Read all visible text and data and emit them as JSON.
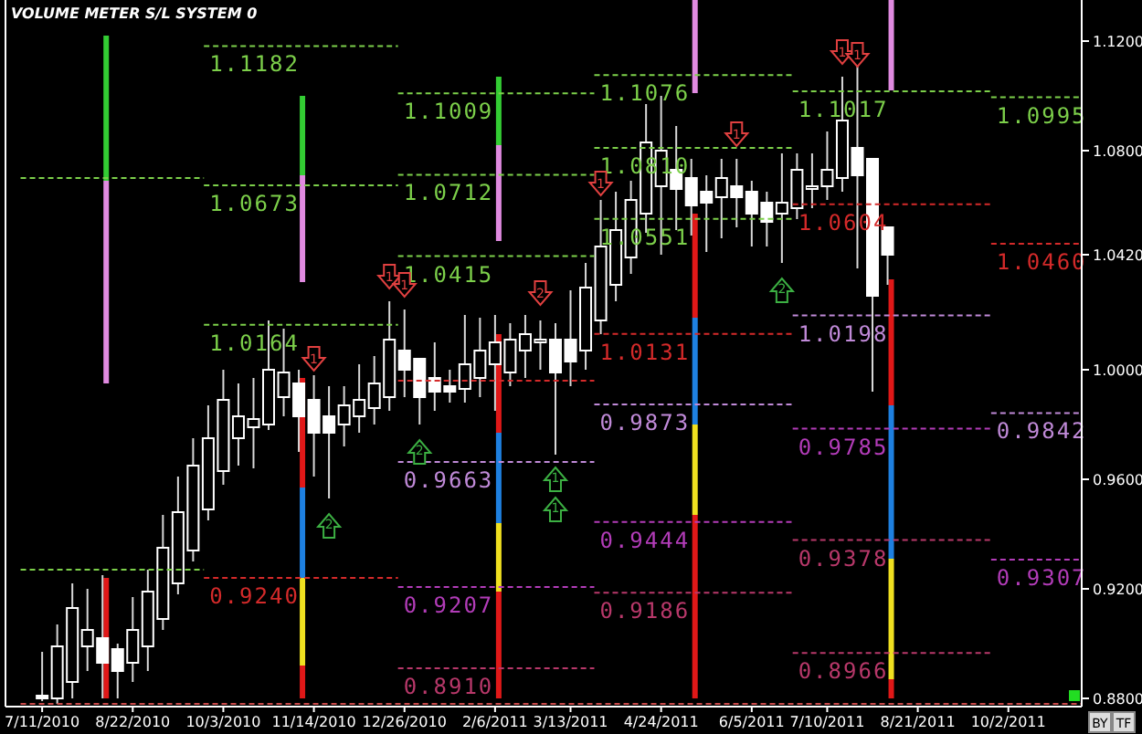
{
  "chart_data": {
    "type": "candlestick",
    "title": "VOLUME METER  S/L SYSTEM 0",
    "x": [
      "2010-07-11",
      "2010-07-18",
      "2010-07-25",
      "2010-08-01",
      "2010-08-08",
      "2010-08-15",
      "2010-08-22",
      "2010-08-29",
      "2010-09-05",
      "2010-09-12",
      "2010-09-19",
      "2010-09-26",
      "2010-10-03",
      "2010-10-10",
      "2010-10-17",
      "2010-10-24",
      "2010-10-31",
      "2010-11-07",
      "2010-11-14",
      "2010-11-21",
      "2010-11-28",
      "2010-12-05",
      "2010-12-12",
      "2010-12-19",
      "2010-12-26",
      "2011-01-02",
      "2011-01-09",
      "2011-01-16",
      "2011-01-23",
      "2011-01-30",
      "2011-02-06",
      "2011-02-13",
      "2011-02-20",
      "2011-02-27",
      "2011-03-06",
      "2011-03-13",
      "2011-03-20",
      "2011-03-27",
      "2011-04-03",
      "2011-04-10",
      "2011-04-17",
      "2011-04-24",
      "2011-05-01",
      "2011-05-08",
      "2011-05-15",
      "2011-05-22",
      "2011-05-29",
      "2011-06-05",
      "2011-06-12",
      "2011-06-19",
      "2011-06-26",
      "2011-07-03",
      "2011-07-10",
      "2011-07-17",
      "2011-07-24",
      "2011-07-31",
      "2011-08-07"
    ],
    "ohlc": [
      [
        0.881,
        0.897,
        0.879,
        0.88
      ],
      [
        0.88,
        0.907,
        0.878,
        0.899
      ],
      [
        0.886,
        0.922,
        0.88,
        0.913
      ],
      [
        0.899,
        0.92,
        0.89,
        0.905
      ],
      [
        0.902,
        0.925,
        0.88,
        0.893
      ],
      [
        0.898,
        0.9,
        0.88,
        0.89
      ],
      [
        0.893,
        0.917,
        0.886,
        0.905
      ],
      [
        0.899,
        0.927,
        0.89,
        0.919
      ],
      [
        0.909,
        0.947,
        0.905,
        0.935
      ],
      [
        0.922,
        0.961,
        0.918,
        0.948
      ],
      [
        0.934,
        0.975,
        0.93,
        0.965
      ],
      [
        0.949,
        0.987,
        0.945,
        0.975
      ],
      [
        0.963,
        1.0,
        0.958,
        0.989
      ],
      [
        0.975,
        0.995,
        0.965,
        0.983
      ],
      [
        0.979,
        0.997,
        0.964,
        0.982
      ],
      [
        0.98,
        1.018,
        0.978,
        1.0
      ],
      [
        0.99,
        1.015,
        0.983,
        0.999
      ],
      [
        0.995,
        1.0,
        0.97,
        0.983
      ],
      [
        0.989,
        0.998,
        0.961,
        0.977
      ],
      [
        0.983,
        0.994,
        0.953,
        0.977
      ],
      [
        0.98,
        0.994,
        0.972,
        0.987
      ],
      [
        0.983,
        1.002,
        0.977,
        0.989
      ],
      [
        0.986,
        1.005,
        0.98,
        0.995
      ],
      [
        0.99,
        1.025,
        0.985,
        1.011
      ],
      [
        1.007,
        1.022,
        0.99,
        1.0
      ],
      [
        1.004,
        1.004,
        0.98,
        0.99
      ],
      [
        0.997,
        1.01,
        0.985,
        0.992
      ],
      [
        0.994,
        1.0,
        0.988,
        0.992
      ],
      [
        0.993,
        1.02,
        0.988,
        1.002
      ],
      [
        0.997,
        1.019,
        0.99,
        1.007
      ],
      [
        1.002,
        1.02,
        0.985,
        1.01
      ],
      [
        0.999,
        1.017,
        0.994,
        1.011
      ],
      [
        1.007,
        1.02,
        0.997,
        1.013
      ],
      [
        1.01,
        1.018,
        1.0,
        1.011
      ],
      [
        1.011,
        1.017,
        0.969,
        0.999
      ],
      [
        1.011,
        1.029,
        0.994,
        1.003
      ],
      [
        1.007,
        1.039,
        1.0,
        1.03
      ],
      [
        1.018,
        1.062,
        1.013,
        1.045
      ],
      [
        1.031,
        1.065,
        1.025,
        1.051
      ],
      [
        1.041,
        1.069,
        1.035,
        1.062
      ],
      [
        1.057,
        1.097,
        1.05,
        1.083
      ],
      [
        1.067,
        1.1,
        1.042,
        1.08
      ],
      [
        1.073,
        1.089,
        1.051,
        1.066
      ],
      [
        1.07,
        1.077,
        1.049,
        1.06
      ],
      [
        1.065,
        1.071,
        1.043,
        1.061
      ],
      [
        1.063,
        1.077,
        1.048,
        1.07
      ],
      [
        1.067,
        1.077,
        1.052,
        1.063
      ],
      [
        1.065,
        1.069,
        1.045,
        1.057
      ],
      [
        1.061,
        1.065,
        1.045,
        1.054
      ],
      [
        1.057,
        1.079,
        1.039,
        1.061
      ],
      [
        1.059,
        1.079,
        1.055,
        1.073
      ],
      [
        1.066,
        1.079,
        1.059,
        1.067
      ],
      [
        1.067,
        1.087,
        1.062,
        1.073
      ],
      [
        1.07,
        1.107,
        1.065,
        1.091
      ],
      [
        1.081,
        1.111,
        1.037,
        1.071
      ],
      [
        1.077,
        1.077,
        0.992,
        1.027
      ],
      [
        1.052,
        1.052,
        1.031,
        1.042
      ]
    ],
    "xlim": [
      "2010-06-24",
      "2011-11-05"
    ],
    "ylim": [
      0.877,
      1.135
    ],
    "xticks": [
      {
        "value": "2010-07-11",
        "label": "7/11/2010"
      },
      {
        "value": "2010-08-22",
        "label": "8/22/2010"
      },
      {
        "value": "2010-10-03",
        "label": "10/3/2010"
      },
      {
        "value": "2010-11-14",
        "label": "11/14/2010"
      },
      {
        "value": "2010-12-26",
        "label": "12/26/2010"
      },
      {
        "value": "2011-02-06",
        "label": "2/6/2011"
      },
      {
        "value": "2011-03-13",
        "label": "3/13/2011"
      },
      {
        "value": "2011-04-24",
        "label": "4/24/2011"
      },
      {
        "value": "2011-06-05",
        "label": "6/5/2011"
      },
      {
        "value": "2011-07-10",
        "label": "7/10/2011"
      },
      {
        "value": "2011-08-21",
        "label": "8/21/2011"
      },
      {
        "value": "2011-10-02",
        "label": "10/2/2011"
      }
    ],
    "yticks": [
      {
        "value": 0.88,
        "label": "0.8800"
      },
      {
        "value": 0.92,
        "label": "0.9200"
      },
      {
        "value": 0.96,
        "label": "0.9600"
      },
      {
        "value": 1.0,
        "label": "1.0000"
      },
      {
        "value": 1.042,
        "label": "1.0420"
      },
      {
        "value": 1.08,
        "label": "1.0800"
      },
      {
        "value": 1.12,
        "label": "1.1200"
      }
    ],
    "series": [
      {
        "type": "line",
        "line_style": "dashed",
        "color": "#7ccf4a",
        "x": [
          "2010-07-01",
          "2010-09-24"
        ],
        "values": [
          1.07,
          1.07
        ]
      },
      {
        "type": "line",
        "line_style": "dashed",
        "color": "#7ccf4a",
        "x": [
          "2010-07-01",
          "2010-09-24"
        ],
        "values": [
          0.927,
          0.927
        ]
      },
      {
        "type": "line",
        "line_style": "dashed",
        "color": "#7ccf4a",
        "name": "1.1182",
        "x": [
          "2010-09-24",
          "2010-12-23"
        ],
        "values": [
          1.1182,
          1.1182
        ]
      },
      {
        "type": "line",
        "line_style": "dashed",
        "color": "#7ccf4a",
        "name": "1.0673",
        "x": [
          "2010-09-24",
          "2010-12-23"
        ],
        "values": [
          1.0673,
          1.0673
        ]
      },
      {
        "type": "line",
        "line_style": "dashed",
        "color": "#7ccf4a",
        "name": "1.0164",
        "x": [
          "2010-09-24",
          "2010-12-23"
        ],
        "values": [
          1.0164,
          1.0164
        ]
      },
      {
        "type": "line",
        "line_style": "dashed",
        "color": "#d42a2a",
        "name": "0.9240",
        "x": [
          "2010-09-24",
          "2010-12-23"
        ],
        "values": [
          0.924,
          0.924
        ]
      },
      {
        "type": "line",
        "line_style": "dashed",
        "color": "#7ccf4a",
        "name": "1.1009",
        "x": [
          "2010-12-23",
          "2011-03-24"
        ],
        "values": [
          1.1009,
          1.1009
        ]
      },
      {
        "type": "line",
        "line_style": "dashed",
        "color": "#7ccf4a",
        "name": "1.0712",
        "x": [
          "2010-12-23",
          "2011-03-24"
        ],
        "values": [
          1.0712,
          1.0712
        ]
      },
      {
        "type": "line",
        "line_style": "dashed",
        "color": "#7ccf4a",
        "name": "1.0415",
        "x": [
          "2010-12-23",
          "2011-03-24"
        ],
        "values": [
          1.0415,
          1.0415
        ]
      },
      {
        "type": "line",
        "line_style": "dashed",
        "color": "#d42a2a",
        "x": [
          "2010-12-23",
          "2011-03-24"
        ],
        "values": [
          0.996,
          0.996
        ]
      },
      {
        "type": "line",
        "line_style": "dashed",
        "color": "#c08ad8",
        "name": "0.9663",
        "x": [
          "2010-12-23",
          "2011-03-24"
        ],
        "values": [
          0.9663,
          0.9663
        ]
      },
      {
        "type": "line",
        "line_style": "dashed",
        "color": "#b23cb8",
        "name": "0.9207",
        "x": [
          "2010-12-23",
          "2011-03-24"
        ],
        "values": [
          0.9207,
          0.9207
        ]
      },
      {
        "type": "line",
        "line_style": "dashed",
        "color": "#b8386a",
        "name": "0.8910",
        "x": [
          "2010-12-23",
          "2011-03-24"
        ],
        "values": [
          0.891,
          0.891
        ]
      },
      {
        "type": "line",
        "line_style": "dashed",
        "color": "#7ccf4a",
        "name": "1.1076",
        "x": [
          "2011-03-24",
          "2011-06-24"
        ],
        "values": [
          1.1076,
          1.1076
        ]
      },
      {
        "type": "line",
        "line_style": "dashed",
        "color": "#7ccf4a",
        "name": "1.0810",
        "x": [
          "2011-03-24",
          "2011-06-24"
        ],
        "values": [
          1.081,
          1.081
        ]
      },
      {
        "type": "line",
        "line_style": "dashed",
        "color": "#7ccf4a",
        "name": "1.0551",
        "x": [
          "2011-03-24",
          "2011-06-24"
        ],
        "values": [
          1.0551,
          1.0551
        ]
      },
      {
        "type": "line",
        "line_style": "dashed",
        "color": "#d42a2a",
        "name": "1.0131",
        "x": [
          "2011-03-24",
          "2011-06-24"
        ],
        "values": [
          1.0131,
          1.0131
        ]
      },
      {
        "type": "line",
        "line_style": "dashed",
        "color": "#c08ad8",
        "name": "0.9873",
        "x": [
          "2011-03-24",
          "2011-06-24"
        ],
        "values": [
          0.9873,
          0.9873
        ]
      },
      {
        "type": "line",
        "line_style": "dashed",
        "color": "#b23cb8",
        "name": "0.9444",
        "x": [
          "2011-03-24",
          "2011-06-24"
        ],
        "values": [
          0.9444,
          0.9444
        ]
      },
      {
        "type": "line",
        "line_style": "dashed",
        "color": "#b8386a",
        "name": "0.9186",
        "x": [
          "2011-03-24",
          "2011-06-24"
        ],
        "values": [
          0.9186,
          0.9186
        ]
      },
      {
        "type": "line",
        "line_style": "dashed",
        "color": "#7ccf4a",
        "name": "1.1017",
        "x": [
          "2011-06-24",
          "2011-09-24"
        ],
        "values": [
          1.1017,
          1.1017
        ]
      },
      {
        "type": "line",
        "line_style": "dashed",
        "color": "#d42a2a",
        "name": "1.0604",
        "x": [
          "2011-06-24",
          "2011-09-24"
        ],
        "values": [
          1.0604,
          1.0604
        ]
      },
      {
        "type": "line",
        "line_style": "dashed",
        "color": "#c08ad8",
        "name": "1.0198",
        "x": [
          "2011-06-24",
          "2011-09-24"
        ],
        "values": [
          1.0198,
          1.0198
        ]
      },
      {
        "type": "line",
        "line_style": "dashed",
        "color": "#b23cb8",
        "name": "0.9785",
        "x": [
          "2011-06-24",
          "2011-09-24"
        ],
        "values": [
          0.9785,
          0.9785
        ]
      },
      {
        "type": "line",
        "line_style": "dashed",
        "color": "#b8386a",
        "name": "0.9378",
        "x": [
          "2011-06-24",
          "2011-09-24"
        ],
        "values": [
          0.9378,
          0.9378
        ]
      },
      {
        "type": "line",
        "line_style": "dashed",
        "color": "#b8386a",
        "name": "0.8966",
        "x": [
          "2011-06-24",
          "2011-09-24"
        ],
        "values": [
          0.8966,
          0.8966
        ]
      },
      {
        "type": "line",
        "line_style": "dashed",
        "color": "#7ccf4a",
        "name": "1.0995",
        "x": [
          "2011-09-24",
          "2011-11-05"
        ],
        "values": [
          1.0995,
          1.0995
        ]
      },
      {
        "type": "line",
        "line_style": "dashed",
        "color": "#d42a2a",
        "name": "1.0460",
        "x": [
          "2011-09-24",
          "2011-11-05"
        ],
        "values": [
          1.046,
          1.046
        ]
      },
      {
        "type": "line",
        "line_style": "dashed",
        "color": "#c08ad8",
        "name": "0.9842",
        "x": [
          "2011-09-24",
          "2011-11-05"
        ],
        "values": [
          0.9842,
          0.9842
        ]
      },
      {
        "type": "line",
        "line_style": "dashed",
        "color": "#b23cb8",
        "name": "0.9307",
        "x": [
          "2011-09-24",
          "2011-11-05"
        ],
        "values": [
          0.9307,
          0.9307
        ]
      },
      {
        "type": "line",
        "line_style": "dashed",
        "color": "#c84848",
        "x": [
          "2010-07-01",
          "2011-11-05"
        ],
        "values": [
          0.878,
          0.878
        ]
      },
      {
        "type": "line",
        "line_style": "solid",
        "color": "#33cc33",
        "x": [
          "2010-08-08",
          "2010-08-08"
        ],
        "values": [
          1.122,
          1.069
        ]
      },
      {
        "type": "line",
        "line_style": "solid",
        "color": "#e08ae0",
        "x": [
          "2010-08-08",
          "2010-08-08"
        ],
        "values": [
          1.069,
          0.995
        ]
      },
      {
        "type": "line",
        "line_style": "solid",
        "color": "#e01818",
        "x": [
          "2010-08-08",
          "2010-08-08"
        ],
        "values": [
          0.924,
          0.88
        ]
      },
      {
        "type": "line",
        "line_style": "solid",
        "color": "#33cc33",
        "x": [
          "2010-11-07",
          "2010-11-07"
        ],
        "values": [
          1.1,
          1.071
        ]
      },
      {
        "type": "line",
        "line_style": "solid",
        "color": "#e08ae0",
        "x": [
          "2010-11-07",
          "2010-11-07"
        ],
        "values": [
          1.071,
          1.032
        ]
      },
      {
        "type": "line",
        "line_style": "solid",
        "color": "#e01818",
        "x": [
          "2010-11-07",
          "2010-11-07"
        ],
        "values": [
          0.997,
          0.957
        ]
      },
      {
        "type": "line",
        "line_style": "solid",
        "color": "#1e80e0",
        "x": [
          "2010-11-07",
          "2010-11-07"
        ],
        "values": [
          0.957,
          0.924
        ]
      },
      {
        "type": "line",
        "line_style": "solid",
        "color": "#f0e020",
        "x": [
          "2010-11-07",
          "2010-11-07"
        ],
        "values": [
          0.924,
          0.892
        ]
      },
      {
        "type": "line",
        "line_style": "solid",
        "color": "#e01818",
        "x": [
          "2010-11-07",
          "2010-11-07"
        ],
        "values": [
          0.892,
          0.88
        ]
      },
      {
        "type": "line",
        "line_style": "solid",
        "color": "#33cc33",
        "x": [
          "2011-02-06",
          "2011-02-06"
        ],
        "values": [
          1.107,
          1.082
        ]
      },
      {
        "type": "line",
        "line_style": "solid",
        "color": "#e08ae0",
        "x": [
          "2011-02-06",
          "2011-02-06"
        ],
        "values": [
          1.082,
          1.047
        ]
      },
      {
        "type": "line",
        "line_style": "solid",
        "color": "#e01818",
        "x": [
          "2011-02-06",
          "2011-02-06"
        ],
        "values": [
          1.013,
          0.977
        ]
      },
      {
        "type": "line",
        "line_style": "solid",
        "color": "#1e80e0",
        "x": [
          "2011-02-06",
          "2011-02-06"
        ],
        "values": [
          0.977,
          0.944
        ]
      },
      {
        "type": "line",
        "line_style": "solid",
        "color": "#f0e020",
        "x": [
          "2011-02-06",
          "2011-02-06"
        ],
        "values": [
          0.944,
          0.919
        ]
      },
      {
        "type": "line",
        "line_style": "solid",
        "color": "#e01818",
        "x": [
          "2011-02-06",
          "2011-02-06"
        ],
        "values": [
          0.919,
          0.88
        ]
      },
      {
        "type": "line",
        "line_style": "solid",
        "color": "#e08ae0",
        "x": [
          "2011-05-08",
          "2011-05-08"
        ],
        "values": [
          1.135,
          1.101
        ]
      },
      {
        "type": "line",
        "line_style": "solid",
        "color": "#e01818",
        "x": [
          "2011-05-08",
          "2011-05-08"
        ],
        "values": [
          1.057,
          1.019
        ]
      },
      {
        "type": "line",
        "line_style": "solid",
        "color": "#1e80e0",
        "x": [
          "2011-05-08",
          "2011-05-08"
        ],
        "values": [
          1.019,
          0.98
        ]
      },
      {
        "type": "line",
        "line_style": "solid",
        "color": "#f0e020",
        "x": [
          "2011-05-08",
          "2011-05-08"
        ],
        "values": [
          0.98,
          0.947
        ]
      },
      {
        "type": "line",
        "line_style": "solid",
        "color": "#e01818",
        "x": [
          "2011-05-08",
          "2011-05-08"
        ],
        "values": [
          0.947,
          0.88
        ]
      },
      {
        "type": "line",
        "line_style": "solid",
        "color": "#e08ae0",
        "x": [
          "2011-08-07",
          "2011-08-07"
        ],
        "values": [
          1.135,
          1.102
        ]
      },
      {
        "type": "line",
        "line_style": "solid",
        "color": "#e01818",
        "x": [
          "2011-08-07",
          "2011-08-07"
        ],
        "values": [
          1.033,
          0.987
        ]
      },
      {
        "type": "line",
        "line_style": "solid",
        "color": "#1e80e0",
        "x": [
          "2011-08-07",
          "2011-08-07"
        ],
        "values": [
          0.987,
          0.931
        ]
      },
      {
        "type": "line",
        "line_style": "solid",
        "color": "#f0e020",
        "x": [
          "2011-08-07",
          "2011-08-07"
        ],
        "values": [
          0.931,
          0.887
        ]
      },
      {
        "type": "line",
        "line_style": "solid",
        "color": "#e01818",
        "x": [
          "2011-08-07",
          "2011-08-07"
        ],
        "values": [
          0.887,
          0.88
        ]
      }
    ],
    "annotations": [
      {
        "text": "1",
        "x": "2010-12-19",
        "y": 1.033
      },
      {
        "text": "1",
        "x": "2010-12-26",
        "y": 1.03
      },
      {
        "text": "1",
        "x": "2010-11-14",
        "y": 1.003
      },
      {
        "text": "2",
        "x": "2010-11-21",
        "y": 0.944
      },
      {
        "text": "2",
        "x": "2011-01-02",
        "y": 0.971
      },
      {
        "text": "2",
        "x": "2011-02-27",
        "y": 1.027
      },
      {
        "text": "1",
        "x": "2011-03-06",
        "y": 0.961
      },
      {
        "text": "1",
        "x": "2011-03-06",
        "y": 0.95
      },
      {
        "text": "1",
        "x": "2011-03-27",
        "y": 1.067
      },
      {
        "text": "1",
        "x": "2011-05-29",
        "y": 1.085
      },
      {
        "text": "2",
        "x": "2011-06-19",
        "y": 1.03
      },
      {
        "text": "1",
        "x": "2011-07-17",
        "y": 1.115
      },
      {
        "text": "1",
        "x": "2011-07-24",
        "y": 1.114
      },
      "BY",
      "TF"
    ]
  }
}
